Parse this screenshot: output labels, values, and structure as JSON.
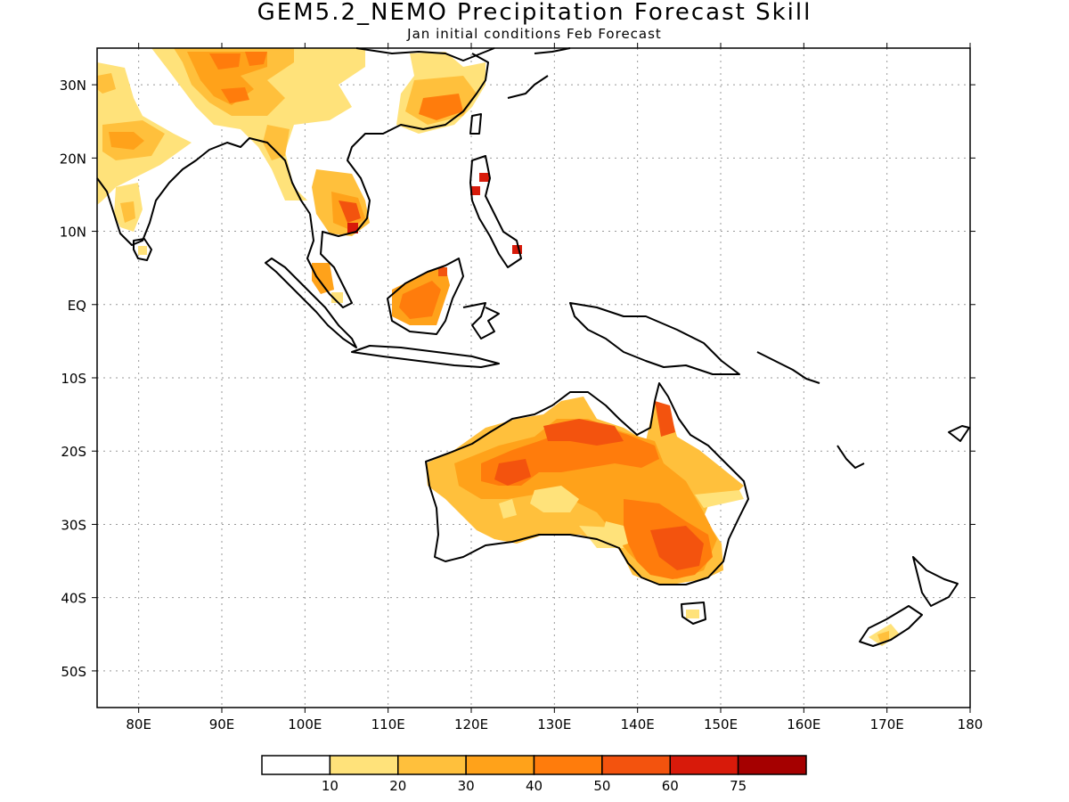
{
  "title": "GEM5.2_NEMO Precipitation Forecast Skill",
  "subtitle": "Jan initial conditions  Feb Forecast",
  "map": {
    "lon_range": [
      75,
      180
    ],
    "lat_range": [
      -55,
      35
    ],
    "lon_ticks": [
      "80E",
      "90E",
      "100E",
      "110E",
      "120E",
      "130E",
      "140E",
      "150E",
      "160E",
      "170E",
      "180"
    ],
    "lat_ticks": [
      "30N",
      "20N",
      "10N",
      "EQ",
      "10S",
      "20S",
      "30S",
      "40S",
      "50S"
    ],
    "grid": true,
    "grid_style": "dotted"
  },
  "colorbar": {
    "labels": [
      "10",
      "20",
      "30",
      "40",
      "50",
      "60",
      "75"
    ],
    "colors": [
      "#ffffff",
      "#ffe27a",
      "#ffc03c",
      "#ffa21a",
      "#ff7c0c",
      "#f3530e",
      "#d81a0a",
      "#a50000"
    ]
  }
}
